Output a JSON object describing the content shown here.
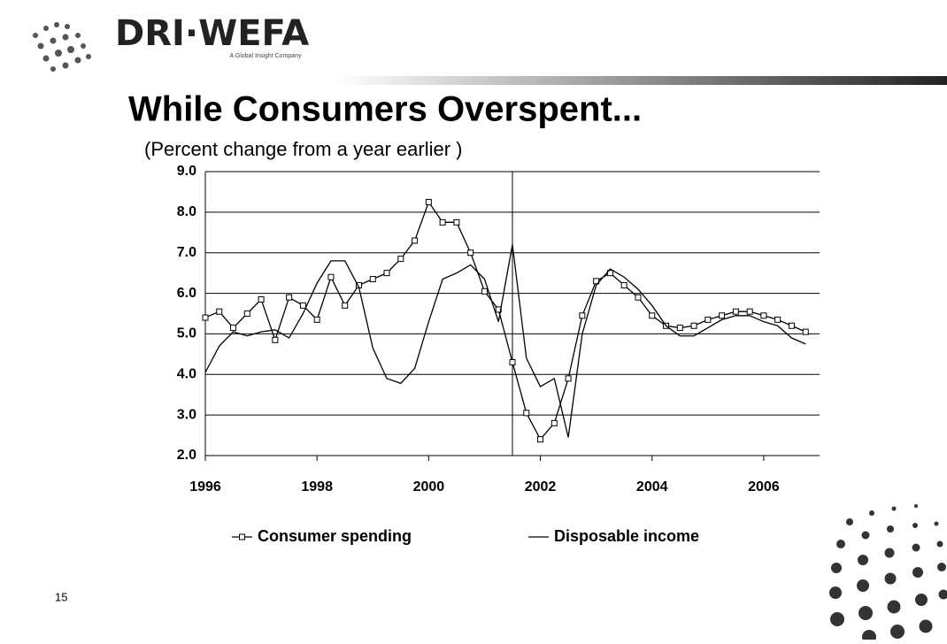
{
  "header": {
    "logo": "DRI·WEFA",
    "tagline": "A Global Insight Company"
  },
  "page_number": "15",
  "chart_data": {
    "type": "line",
    "title": "While Consumers Overspent...",
    "subtitle": "(Percent change from a year earlier )",
    "x": [
      1996,
      1996.25,
      1996.5,
      1996.75,
      1997,
      1997.25,
      1997.5,
      1997.75,
      1998,
      1998.25,
      1998.5,
      1998.75,
      1999,
      1999.25,
      1999.5,
      1999.75,
      2000,
      2000.25,
      2000.5,
      2000.75,
      2001,
      2001.25,
      2001.5,
      2001.75,
      2002,
      2002.25,
      2002.5,
      2002.75,
      2003,
      2003.25,
      2003.5,
      2003.75,
      2004,
      2004.25,
      2004.5,
      2004.75,
      2005,
      2005.25,
      2005.5,
      2005.75,
      2006,
      2006.25,
      2006.5,
      2006.75
    ],
    "series": [
      {
        "name": "Consumer spending",
        "color": "#000000",
        "marker": "square",
        "values": [
          5.4,
          5.55,
          5.15,
          5.5,
          5.85,
          4.85,
          5.9,
          5.7,
          5.35,
          6.4,
          5.7,
          6.2,
          6.35,
          6.5,
          6.85,
          7.3,
          8.25,
          7.75,
          7.75,
          7.0,
          6.05,
          5.6,
          4.3,
          3.05,
          2.4,
          2.8,
          3.9,
          5.45,
          6.3,
          6.5,
          6.2,
          5.9,
          5.45,
          5.2,
          5.15,
          5.2,
          5.35,
          5.45,
          5.55,
          5.55,
          5.45,
          5.35,
          5.2,
          5.05
        ]
      },
      {
        "name": "Disposable income",
        "color": "#000000",
        "marker": "none",
        "values": [
          4.05,
          4.7,
          5.05,
          4.95,
          5.05,
          5.1,
          4.9,
          5.5,
          6.25,
          6.8,
          6.8,
          6.15,
          4.65,
          3.9,
          3.78,
          4.15,
          5.3,
          6.35,
          6.5,
          6.7,
          6.35,
          5.3,
          7.2,
          4.4,
          3.7,
          3.9,
          2.45,
          5.0,
          6.2,
          6.6,
          6.4,
          6.1,
          5.7,
          5.2,
          4.95,
          4.95,
          5.15,
          5.35,
          5.45,
          5.45,
          5.3,
          5.2,
          4.9,
          4.75
        ]
      }
    ],
    "xlim": [
      1996,
      2007
    ],
    "xticks": [
      1996,
      1998,
      2000,
      2002,
      2004,
      2006
    ],
    "ylim": [
      2,
      9
    ],
    "yticks": [
      {
        "value": 2,
        "label": "2.0"
      },
      {
        "value": 3,
        "label": "3.0"
      },
      {
        "value": 4,
        "label": "4.0"
      },
      {
        "value": 5,
        "label": "5.0"
      },
      {
        "value": 6,
        "label": "6.0"
      },
      {
        "value": 7,
        "label": "7.0"
      },
      {
        "value": 8,
        "label": "8.0"
      },
      {
        "value": 9,
        "label": "9.0"
      }
    ],
    "reference_x": 2001.5,
    "grid": true,
    "legend": "bottom"
  }
}
